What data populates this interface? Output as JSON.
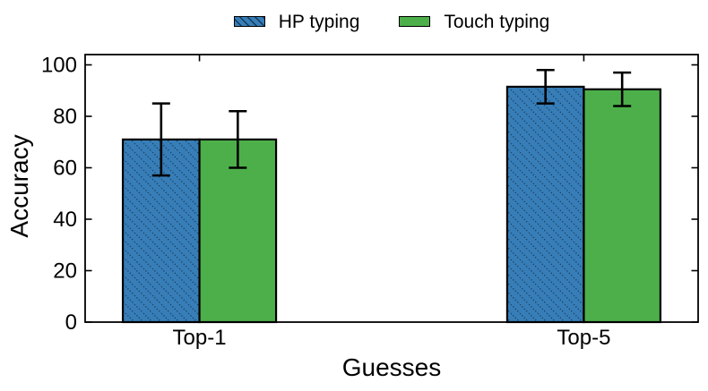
{
  "chart_data": {
    "type": "bar",
    "title": "",
    "xlabel": "Guesses",
    "ylabel": "Accuracy",
    "categories": [
      "Top-1",
      "Top-5"
    ],
    "series": [
      {
        "name": "HP typing",
        "color": "#377eb8",
        "hatch": "\\",
        "values": [
          71,
          91.5
        ],
        "errors": [
          14,
          6.5
        ]
      },
      {
        "name": "Touch typing",
        "color": "#4daf4a",
        "hatch": null,
        "values": [
          71,
          90.5
        ],
        "errors": [
          11,
          6.5
        ]
      }
    ],
    "ylim": [
      0,
      104
    ],
    "yticks": [
      0,
      20,
      40,
      60,
      80,
      100
    ],
    "grid": false,
    "legend_position": "top center",
    "bar_edge_color": "#000000",
    "error_bar_color": "#000000",
    "hatch_line_color": "#1c4060",
    "text_color": "#000000",
    "background": "#ffffff"
  }
}
